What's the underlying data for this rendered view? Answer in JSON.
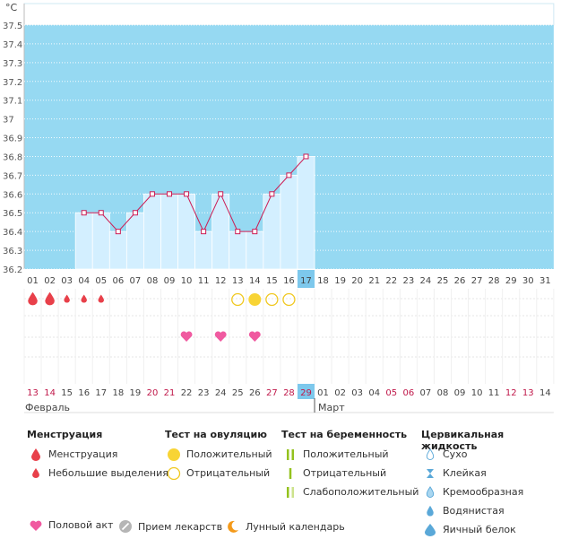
{
  "chart_data": {
    "type": "bar",
    "unit_label": "°C",
    "ylim": [
      36.2,
      37.5
    ],
    "yticks": [
      "37.5",
      "37.4",
      "37.3",
      "37.2",
      "37.1",
      "37",
      "36.9",
      "36.8",
      "36.7",
      "36.6",
      "36.5",
      "36.4",
      "36.3",
      "36.2"
    ],
    "days_top": [
      "01",
      "02",
      "03",
      "04",
      "05",
      "06",
      "07",
      "08",
      "09",
      "10",
      "11",
      "12",
      "13",
      "14",
      "15",
      "16",
      "17",
      "18",
      "19",
      "20",
      "21",
      "22",
      "23",
      "24",
      "25",
      "26",
      "27",
      "28",
      "29",
      "30",
      "31"
    ],
    "days_bottom": [
      "13",
      "14",
      "15",
      "16",
      "17",
      "18",
      "19",
      "20",
      "21",
      "22",
      "23",
      "24",
      "25",
      "26",
      "27",
      "28",
      "29",
      "01",
      "02",
      "03",
      "04",
      "05",
      "06",
      "07",
      "08",
      "09",
      "10",
      "11",
      "12",
      "13",
      "14"
    ],
    "weekend_bottom_idx": [
      0,
      1,
      7,
      8,
      14,
      15,
      16,
      21,
      22,
      28,
      29
    ],
    "today_idx": 16,
    "months": {
      "first": "Февраль",
      "second": "Март"
    },
    "temperatures": [
      null,
      null,
      null,
      36.5,
      36.5,
      36.4,
      36.5,
      36.6,
      36.6,
      36.6,
      36.4,
      36.6,
      36.4,
      36.4,
      36.6,
      36.7,
      36.8,
      null,
      null,
      null,
      null,
      null,
      null,
      null,
      null,
      null,
      null,
      null,
      null,
      null,
      null
    ],
    "menstruation": [
      2,
      2,
      1,
      1,
      1
    ],
    "ovulation_tests": {
      "12": "negative",
      "13": "positive",
      "14": "negative",
      "15": "negative"
    },
    "intercourse_days": [
      9,
      11,
      13
    ]
  },
  "legend": {
    "menstruation": {
      "title": "Менструация",
      "items": [
        "Менструация",
        "Небольшие выделения"
      ]
    },
    "ovulation": {
      "title": "Тест на овуляцию",
      "items": [
        "Положительный",
        "Отрицательный"
      ]
    },
    "pregnancy": {
      "title": "Тест на беременность",
      "items": [
        "Положительный",
        "Отрицательный",
        "Слабоположительный"
      ]
    },
    "cervical": {
      "title": "Цервикальная жидкость",
      "items": [
        "Сухо",
        "Клейкая",
        "Кремообразная",
        "Водянистая",
        "Яичный белок"
      ]
    },
    "bottom": [
      "Половой акт",
      "Прием лекарств",
      "Лунный календарь"
    ]
  },
  "colors": {
    "sky": "#96d9f2",
    "bar": "#d3efff",
    "line": "#cc1c54",
    "drop": "#e8404a",
    "heart": "#f05aa0",
    "ovulation": "#f8d435",
    "today": "#7dc8ec",
    "weekend": "#c0184a"
  }
}
